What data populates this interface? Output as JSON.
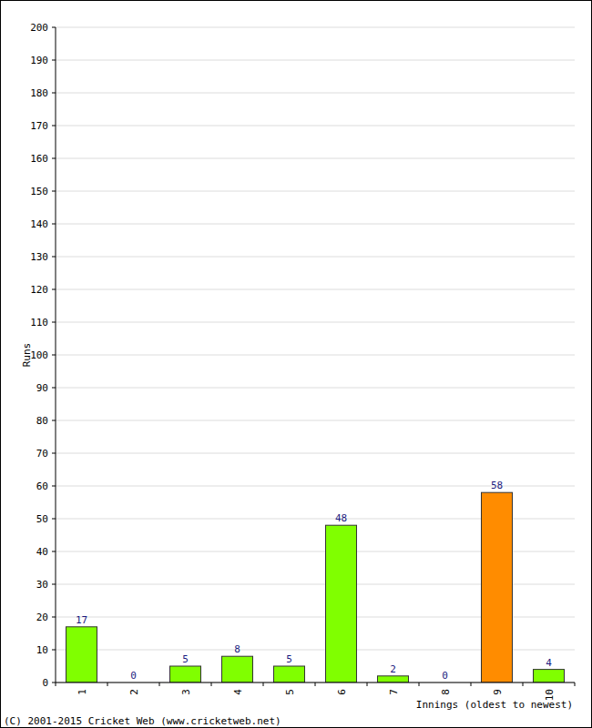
{
  "chart_data": {
    "type": "bar",
    "y_label": "Runs",
    "x_label": "Innings (oldest to newest)",
    "annotations": [
      "(C) 2001-2015 Cricket Web (www.cricketweb.net)"
    ],
    "categories": [
      "1",
      "2",
      "3",
      "4",
      "5",
      "6",
      "7",
      "8",
      "9",
      "10"
    ],
    "values": [
      17,
      0,
      5,
      8,
      5,
      48,
      2,
      0,
      58,
      4
    ],
    "colors": [
      "#80ff00",
      "#80ff00",
      "#80ff00",
      "#80ff00",
      "#80ff00",
      "#80ff00",
      "#80ff00",
      "#80ff00",
      "#ff8c00",
      "#80ff00"
    ],
    "ylim": [
      0,
      200
    ],
    "yticks": [
      0,
      10,
      20,
      30,
      40,
      50,
      60,
      70,
      80,
      90,
      100,
      110,
      120,
      130,
      140,
      150,
      160,
      170,
      180,
      190,
      200
    ],
    "grid": true,
    "data_labels": true
  }
}
